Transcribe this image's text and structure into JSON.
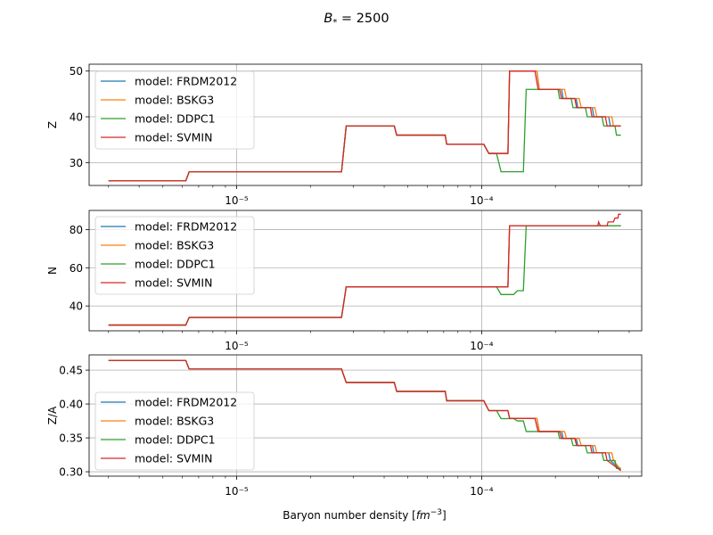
{
  "figure": {
    "suptitle": "B* = 2500",
    "xlabel": "Baryon number density [fm⁻³]"
  },
  "colors": {
    "FRDM2012": "#1f77b4",
    "BSKG3": "#ff7f0e",
    "DDPC1": "#2ca02c",
    "SVMIN": "#d62728"
  },
  "chart_data": [
    {
      "type": "line",
      "ylabel": "Z",
      "xscale": "log",
      "xlim": [
        2.5e-06,
        0.00045
      ],
      "ylim": [
        25,
        51.5
      ],
      "yticks": [
        30,
        40,
        50
      ],
      "xticks": [
        1e-05,
        0.0001
      ],
      "xtick_labels": [
        "10⁻⁵",
        "10⁻⁴"
      ],
      "grid": true,
      "legend": "upper left",
      "series": [
        {
          "name": "model: FRDM2012",
          "x": [
            3e-06,
            6.2e-06,
            6.4e-06,
            2.68e-05,
            2.8e-05,
            4.4e-05,
            4.5e-05,
            7.1e-05,
            7.2e-05,
            0.000102,
            0.000107,
            0.000128,
            0.00013,
            0.000168,
            0.000172,
            0.000212,
            0.000215,
            0.000243,
            0.000247,
            0.000283,
            0.000287,
            0.00033,
            0.000335,
            0.00037
          ],
          "y": [
            26,
            26,
            28,
            28,
            38,
            38,
            36,
            36,
            34,
            34,
            32,
            32,
            50,
            50,
            46,
            46,
            44,
            44,
            42,
            42,
            40,
            40,
            38,
            38
          ]
        },
        {
          "name": "model: BSKG3",
          "x": [
            3e-06,
            6.2e-06,
            6.4e-06,
            2.68e-05,
            2.8e-05,
            4.4e-05,
            4.5e-05,
            7.1e-05,
            7.2e-05,
            0.000102,
            0.000107,
            0.000128,
            0.00013,
            0.000168,
            0.000172,
            0.000218,
            0.000222,
            0.00025,
            0.000255,
            0.00029,
            0.000295,
            0.00034,
            0.000345,
            0.00037
          ],
          "y": [
            26,
            26,
            28,
            28,
            38,
            38,
            36,
            36,
            34,
            34,
            32,
            32,
            50,
            50,
            46,
            46,
            44,
            44,
            42,
            42,
            40,
            40,
            38,
            38
          ]
        },
        {
          "name": "model: DDPC1",
          "x": [
            3e-06,
            6.2e-06,
            6.4e-06,
            2.68e-05,
            2.8e-05,
            4.4e-05,
            4.5e-05,
            7.1e-05,
            7.2e-05,
            0.000102,
            0.000107,
            0.000115,
            0.00012,
            0.000148,
            0.000152,
            0.000175,
            0.000178,
            0.000205,
            0.000208,
            0.000232,
            0.000236,
            0.000265,
            0.00027,
            0.00031,
            0.000315,
            0.00035,
            0.000355,
            0.00037
          ],
          "y": [
            26,
            26,
            28,
            28,
            38,
            38,
            36,
            36,
            34,
            34,
            32,
            32,
            28,
            28,
            46,
            46,
            46,
            46,
            44,
            44,
            42,
            42,
            40,
            40,
            38,
            38,
            36,
            36
          ]
        },
        {
          "name": "model: SVMIN",
          "x": [
            3e-06,
            6.2e-06,
            6.4e-06,
            2.68e-05,
            2.8e-05,
            4.4e-05,
            4.5e-05,
            7.1e-05,
            7.2e-05,
            0.000102,
            0.000107,
            0.000128,
            0.00013,
            0.000165,
            0.00017,
            0.000208,
            0.000212,
            0.00024,
            0.000244,
            0.000278,
            0.000282,
            0.00032,
            0.000325,
            0.00037
          ],
          "y": [
            26,
            26,
            28,
            28,
            38,
            38,
            36,
            36,
            34,
            34,
            32,
            32,
            50,
            50,
            46,
            46,
            44,
            44,
            42,
            42,
            40,
            40,
            38,
            38
          ]
        }
      ]
    },
    {
      "type": "line",
      "ylabel": "N",
      "xscale": "log",
      "xlim": [
        2.5e-06,
        0.00045
      ],
      "ylim": [
        27,
        90
      ],
      "yticks": [
        40,
        60,
        80
      ],
      "xticks": [
        1e-05,
        0.0001
      ],
      "xtick_labels": [
        "10⁻⁵",
        "10⁻⁴"
      ],
      "grid": true,
      "legend": "upper left",
      "series": [
        {
          "name": "model: FRDM2012",
          "x": [
            3e-06,
            6.2e-06,
            6.4e-06,
            2.68e-05,
            2.8e-05,
            0.000128,
            0.00013,
            0.00037
          ],
          "y": [
            30,
            30,
            34,
            34,
            50,
            50,
            82,
            82
          ]
        },
        {
          "name": "model: BSKG3",
          "x": [
            3e-06,
            6.2e-06,
            6.4e-06,
            2.68e-05,
            2.8e-05,
            0.000128,
            0.00013,
            0.00037
          ],
          "y": [
            30,
            30,
            34,
            34,
            50,
            50,
            82,
            82
          ]
        },
        {
          "name": "model: DDPC1",
          "x": [
            3e-06,
            6.2e-06,
            6.4e-06,
            2.68e-05,
            2.8e-05,
            0.000115,
            0.00012,
            0.000135,
            0.00014,
            0.000148,
            0.000152,
            0.00037
          ],
          "y": [
            30,
            30,
            34,
            34,
            50,
            50,
            46,
            46,
            48,
            48,
            82,
            82
          ]
        },
        {
          "name": "model: SVMIN",
          "x": [
            3e-06,
            6.2e-06,
            6.4e-06,
            2.68e-05,
            2.8e-05,
            0.000128,
            0.00013,
            0.000298,
            0.0003,
            0.000305,
            0.000325,
            0.000328,
            0.000345,
            0.00035,
            0.00036,
            0.000362,
            0.00037
          ],
          "y": [
            30,
            30,
            34,
            34,
            50,
            50,
            82,
            82,
            84,
            82,
            82,
            84,
            84,
            86,
            86,
            88,
            88
          ]
        }
      ]
    },
    {
      "type": "line",
      "ylabel": "Z/A",
      "xscale": "log",
      "xlim": [
        2.5e-06,
        0.00045
      ],
      "ylim": [
        0.2935,
        0.4725
      ],
      "yticks": [
        0.3,
        0.35,
        0.4,
        0.45
      ],
      "ytick_labels": [
        "0.30",
        "0.35",
        "0.40",
        "0.45"
      ],
      "xticks": [
        1e-05,
        0.0001
      ],
      "xtick_labels": [
        "10⁻⁵",
        "10⁻⁴"
      ],
      "grid": true,
      "legend": "center left",
      "series": [
        {
          "name": "model: FRDM2012",
          "x": [
            3e-06,
            6.2e-06,
            6.4e-06,
            2.68e-05,
            2.8e-05,
            4.4e-05,
            4.5e-05,
            7.1e-05,
            7.2e-05,
            0.000102,
            0.000107,
            0.000128,
            0.00013,
            0.000168,
            0.000172,
            0.000212,
            0.000215,
            0.000243,
            0.000247,
            0.000283,
            0.000287,
            0.00033,
            0.000335,
            0.00037
          ],
          "y": [
            0.4643,
            0.4643,
            0.4516,
            0.4516,
            0.4318,
            0.4318,
            0.4186,
            0.4186,
            0.4048,
            0.4048,
            0.3902,
            0.3902,
            0.3788,
            0.3788,
            0.3594,
            0.3594,
            0.3492,
            0.3492,
            0.3387,
            0.3387,
            0.3279,
            0.3279,
            0.3167,
            0.3028
          ]
        },
        {
          "name": "model: BSKG3",
          "x": [
            3e-06,
            6.2e-06,
            6.4e-06,
            2.68e-05,
            2.8e-05,
            4.4e-05,
            4.5e-05,
            7.1e-05,
            7.2e-05,
            0.000102,
            0.000107,
            0.000128,
            0.00013,
            0.000168,
            0.000172,
            0.000218,
            0.000222,
            0.00025,
            0.000255,
            0.00029,
            0.000295,
            0.00034,
            0.000345,
            0.00037
          ],
          "y": [
            0.4643,
            0.4643,
            0.4516,
            0.4516,
            0.4318,
            0.4318,
            0.4186,
            0.4186,
            0.4048,
            0.4048,
            0.3902,
            0.3902,
            0.3788,
            0.3788,
            0.3594,
            0.3594,
            0.3492,
            0.3492,
            0.3387,
            0.3387,
            0.3279,
            0.3279,
            0.3167,
            0.3028
          ]
        },
        {
          "name": "model: DDPC1",
          "x": [
            3e-06,
            6.2e-06,
            6.4e-06,
            2.68e-05,
            2.8e-05,
            4.4e-05,
            4.5e-05,
            7.1e-05,
            7.2e-05,
            0.000102,
            0.000107,
            0.000115,
            0.00012,
            0.000135,
            0.00014,
            0.000148,
            0.000152,
            0.000175,
            0.000178,
            0.000205,
            0.000208,
            0.000232,
            0.000236,
            0.000265,
            0.00027,
            0.00031,
            0.000315,
            0.00035,
            0.000355,
            0.00037
          ],
          "y": [
            0.4643,
            0.4643,
            0.4516,
            0.4516,
            0.4318,
            0.4318,
            0.4186,
            0.4186,
            0.4048,
            0.4048,
            0.3902,
            0.3902,
            0.3784,
            0.3784,
            0.375,
            0.375,
            0.3594,
            0.3594,
            0.3594,
            0.3594,
            0.3492,
            0.3492,
            0.3387,
            0.3387,
            0.3279,
            0.3279,
            0.3167,
            0.3167,
            0.3051,
            0.3051
          ]
        },
        {
          "name": "model: SVMIN",
          "x": [
            3e-06,
            6.2e-06,
            6.4e-06,
            2.68e-05,
            2.8e-05,
            4.4e-05,
            4.5e-05,
            7.1e-05,
            7.2e-05,
            0.000102,
            0.000107,
            0.000128,
            0.00013,
            0.000165,
            0.00017,
            0.000208,
            0.000212,
            0.00024,
            0.000244,
            0.000278,
            0.000282,
            0.00032,
            0.000325,
            0.00037
          ],
          "y": [
            0.4643,
            0.4643,
            0.4516,
            0.4516,
            0.4318,
            0.4318,
            0.4186,
            0.4186,
            0.4048,
            0.4048,
            0.3902,
            0.3902,
            0.3788,
            0.3788,
            0.3594,
            0.3594,
            0.3492,
            0.3492,
            0.3387,
            0.3387,
            0.3279,
            0.3279,
            0.3167,
            0.3016
          ]
        }
      ]
    }
  ]
}
